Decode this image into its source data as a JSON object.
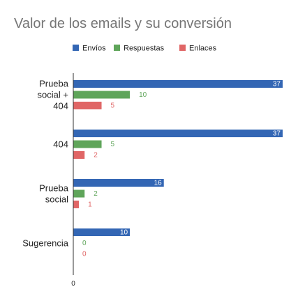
{
  "chart_data": {
    "type": "bar",
    "orientation": "horizontal",
    "title": "Valor de los emails y su conversión",
    "categories": [
      [
        "Prueba",
        "social +",
        "404"
      ],
      [
        "404"
      ],
      [
        "Prueba",
        "social"
      ],
      [
        "Sugerencia"
      ]
    ],
    "series": [
      {
        "name": "Envíos",
        "color": "#3366b4",
        "values": [
          37,
          37,
          16,
          10
        ]
      },
      {
        "name": "Respuestas",
        "color": "#5fa55a",
        "values": [
          10,
          5,
          2,
          0
        ]
      },
      {
        "name": "Enlaces",
        "color": "#e06666",
        "values": [
          5,
          2,
          1,
          0
        ]
      }
    ],
    "xlim": [
      0,
      37
    ],
    "x_ticks": [
      "0"
    ],
    "legend_position": "top",
    "grid": false
  }
}
